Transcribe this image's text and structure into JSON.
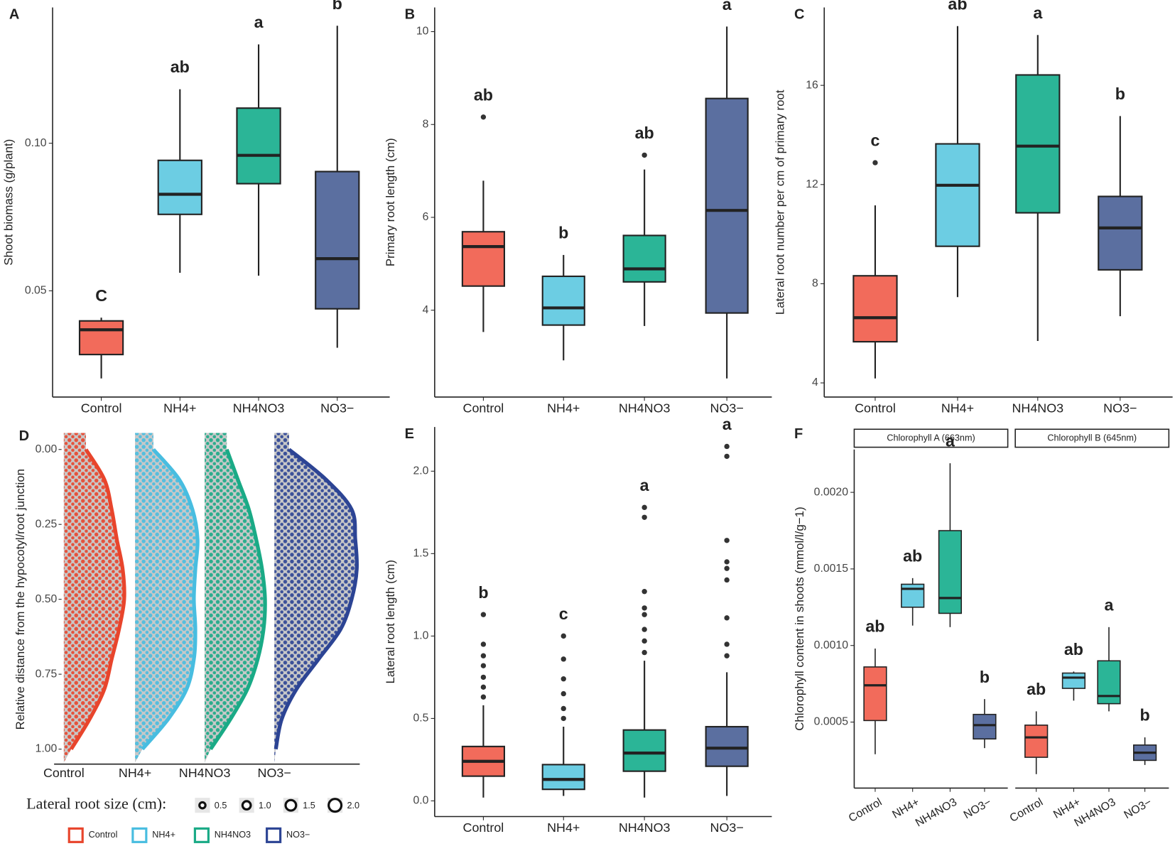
{
  "chart_data": [
    {
      "panel": "A",
      "type": "box",
      "ylabel": "Shoot biomass (g/plant)",
      "categories": [
        "Control",
        "NH4+",
        "NH4NO3",
        "NO3−"
      ],
      "colors": [
        "#f26b5b",
        "#6ccde3",
        "#2bb597",
        "#5b6fa0"
      ],
      "ylim": [
        0.014,
        0.146
      ],
      "yticks": [
        0.05,
        {
          "value": 0.1,
          "label": "0.10"
        }
      ],
      "boxes": [
        {
          "min": 0.0203,
          "q1": 0.0284,
          "median": 0.0368,
          "q3": 0.0398,
          "max": 0.0409,
          "outliers": [],
          "letter": "C"
        },
        {
          "min": 0.0561,
          "q1": 0.0759,
          "median": 0.0827,
          "q3": 0.0942,
          "max": 0.1183,
          "outliers": [],
          "letter": "ab"
        },
        {
          "min": 0.0551,
          "q1": 0.0863,
          "median": 0.0959,
          "q3": 0.1119,
          "max": 0.1335,
          "outliers": [],
          "letter": "a"
        },
        {
          "min": 0.0307,
          "q1": 0.0439,
          "median": 0.0609,
          "q3": 0.0904,
          "max": 0.1398,
          "outliers": [],
          "letter": "b"
        }
      ]
    },
    {
      "panel": "B",
      "type": "box",
      "ylabel": "Primary root length (cm)",
      "categories": [
        "Control",
        "NH4+",
        "NH4NO3",
        "NO3−"
      ],
      "colors": [
        "#f26b5b",
        "#6ccde3",
        "#2bb597",
        "#5b6fa0"
      ],
      "ylim": [
        2.13,
        10.52
      ],
      "yticks": [
        4,
        6,
        8,
        10
      ],
      "boxes": [
        {
          "min": 3.53,
          "q1": 4.52,
          "median": 5.37,
          "q3": 5.69,
          "max": 6.79,
          "outliers": [
            8.16
          ],
          "letter": "ab"
        },
        {
          "min": 2.92,
          "q1": 3.68,
          "median": 4.05,
          "q3": 4.73,
          "max": 5.19,
          "outliers": [],
          "letter": "b"
        },
        {
          "min": 3.66,
          "q1": 4.61,
          "median": 4.89,
          "q3": 5.61,
          "max": 7.03,
          "outliers": [
            7.34
          ],
          "letter": "ab"
        },
        {
          "min": 2.53,
          "q1": 3.94,
          "median": 6.15,
          "q3": 8.56,
          "max": 10.11,
          "outliers": [],
          "letter": "a"
        }
      ]
    },
    {
      "panel": "C",
      "type": "box",
      "ylabel": "Lateral root number per cm of primary root",
      "categories": [
        "Control",
        "NH4+",
        "NH4NO3",
        "NO3−"
      ],
      "colors": [
        "#f26b5b",
        "#6ccde3",
        "#2bb597",
        "#5b6fa0"
      ],
      "ylim": [
        3.43,
        19.14
      ],
      "yticks": [
        4,
        8,
        12,
        16
      ],
      "boxes": [
        {
          "min": 4.18,
          "q1": 5.66,
          "median": 6.63,
          "q3": 8.32,
          "max": 11.16,
          "outliers": [
            12.88
          ],
          "letter": "c"
        },
        {
          "min": 7.46,
          "q1": 9.51,
          "median": 11.97,
          "q3": 13.64,
          "max": 18.39,
          "outliers": [],
          "letter": "ab"
        },
        {
          "min": 5.69,
          "q1": 10.86,
          "median": 13.55,
          "q3": 16.42,
          "max": 18.03,
          "outliers": [],
          "letter": "a"
        },
        {
          "min": 6.69,
          "q1": 8.56,
          "median": 10.25,
          "q3": 11.52,
          "max": 14.76,
          "outliers": [],
          "letter": "b"
        }
      ]
    },
    {
      "panel": "D",
      "type": "violin",
      "ylabel": "Relative distance from the hypocotyl/root junction",
      "categories": [
        "Control",
        "NH4+",
        "NH4NO3",
        "NO3−"
      ],
      "colors": [
        "#e8452c",
        "#48bde0",
        "#1aaa86",
        "#2c4494"
      ],
      "ylim": [
        0,
        1
      ],
      "y_reversed": true,
      "yticks": [
        {
          "value": 0,
          "label": "0.00"
        },
        0.25,
        {
          "value": 0.5,
          "label": "0.50"
        },
        0.75,
        {
          "value": 1,
          "label": "1.00"
        }
      ],
      "density_y": [
        0,
        0.1,
        0.2,
        0.3,
        0.4,
        0.5,
        0.6,
        0.7,
        0.8,
        0.9,
        1
      ],
      "density": [
        [
          30,
          55,
          65,
          72,
          80,
          82,
          75,
          65,
          55,
          35,
          10
        ],
        [
          25,
          60,
          78,
          85,
          82,
          80,
          82,
          80,
          70,
          45,
          10
        ],
        [
          30,
          45,
          60,
          70,
          78,
          82,
          80,
          72,
          58,
          35,
          8
        ],
        [
          20,
          70,
          105,
          110,
          112,
          105,
          90,
          60,
          30,
          10,
          2
        ]
      ],
      "size_legend": {
        "title": "Lateral root size (cm):",
        "values": [
          0.5,
          {
            "value": 1,
            "label": "1.0"
          },
          1.5,
          {
            "value": 2,
            "label": "2.0"
          }
        ]
      }
    },
    {
      "panel": "E",
      "type": "box",
      "ylabel": "Lateral root length (cm)",
      "categories": [
        "Control",
        "NH4+",
        "NH4NO3",
        "NO3−"
      ],
      "colors": [
        "#f26b5b",
        "#6ccde3",
        "#2bb597",
        "#5b6fa0"
      ],
      "ylim": [
        -0.095,
        2.268
      ],
      "yticks": [
        {
          "value": 0,
          "label": "0.0"
        },
        0.5,
        {
          "value": 1,
          "label": "1.0"
        },
        1.5,
        {
          "value": 2,
          "label": "2.0"
        }
      ],
      "boxes": [
        {
          "min": 0.02,
          "q1": 0.15,
          "median": 0.24,
          "q3": 0.33,
          "max": 0.58,
          "outliers": [
            0.63,
            0.69,
            0.75,
            0.82,
            0.88,
            0.95,
            1.13
          ],
          "letter": "b"
        },
        {
          "min": 0.03,
          "q1": 0.07,
          "median": 0.13,
          "q3": 0.22,
          "max": 0.45,
          "outliers": [
            0.5,
            0.56,
            0.65,
            0.74,
            0.86,
            1.0
          ],
          "letter": "c"
        },
        {
          "min": 0.02,
          "q1": 0.18,
          "median": 0.29,
          "q3": 0.43,
          "max": 0.85,
          "outliers": [
            0.9,
            0.97,
            1.04,
            1.13,
            1.17,
            1.27,
            1.72,
            1.78
          ],
          "letter": "a"
        },
        {
          "min": 0.03,
          "q1": 0.21,
          "median": 0.32,
          "q3": 0.45,
          "max": 0.78,
          "outliers": [
            0.88,
            0.95,
            1.11,
            1.34,
            1.41,
            1.45,
            1.58,
            2.09,
            2.15
          ],
          "letter": "a"
        }
      ]
    },
    {
      "panel": "F",
      "type": "facet_box",
      "ylabel": "Chlorophyll content in shoots (mmol/l/g−1)",
      "categories": [
        "Control",
        "NH4+",
        "NH4NO3",
        "NO3−"
      ],
      "colors": [
        "#f26b5b",
        "#6ccde3",
        "#2bb597",
        "#5b6fa0"
      ],
      "ylim": [
        6.9e-05,
        0.00228
      ],
      "yticks": [
        0.0005,
        {
          "value": 0.001,
          "label": "0.0010"
        },
        {
          "value": 0.0015,
          "label": "0.0015"
        },
        {
          "value": 0.002,
          "label": "0.0020"
        }
      ],
      "facets": [
        {
          "title": "Chlorophyll A (663nm)",
          "boxes": [
            {
              "min": 0.00029,
              "q1": 0.00051,
              "median": 0.00074,
              "q3": 0.00086,
              "max": 0.00098,
              "letter": "ab"
            },
            {
              "min": 0.00113,
              "q1": 0.00125,
              "median": 0.00137,
              "q3": 0.0014,
              "max": 0.00144,
              "letter": "ab"
            },
            {
              "min": 0.00112,
              "q1": 0.00121,
              "median": 0.00131,
              "q3": 0.00175,
              "max": 0.00219,
              "letter": "a"
            },
            {
              "min": 0.00033,
              "q1": 0.00039,
              "median": 0.00048,
              "q3": 0.00055,
              "max": 0.00065,
              "letter": "b"
            }
          ]
        },
        {
          "title": "Chlorophyll B (645nm)",
          "boxes": [
            {
              "min": 0.00016,
              "q1": 0.00027,
              "median": 0.0004,
              "q3": 0.00048,
              "max": 0.00057,
              "letter": "ab"
            },
            {
              "min": 0.00064,
              "q1": 0.00072,
              "median": 0.00079,
              "q3": 0.00082,
              "max": 0.00083,
              "letter": "ab"
            },
            {
              "min": 0.00057,
              "q1": 0.00062,
              "median": 0.00067,
              "q3": 0.0009,
              "max": 0.00112,
              "letter": "a"
            },
            {
              "min": 0.00022,
              "q1": 0.00025,
              "median": 0.0003,
              "q3": 0.00035,
              "max": 0.0004,
              "letter": "b"
            }
          ]
        }
      ]
    }
  ]
}
